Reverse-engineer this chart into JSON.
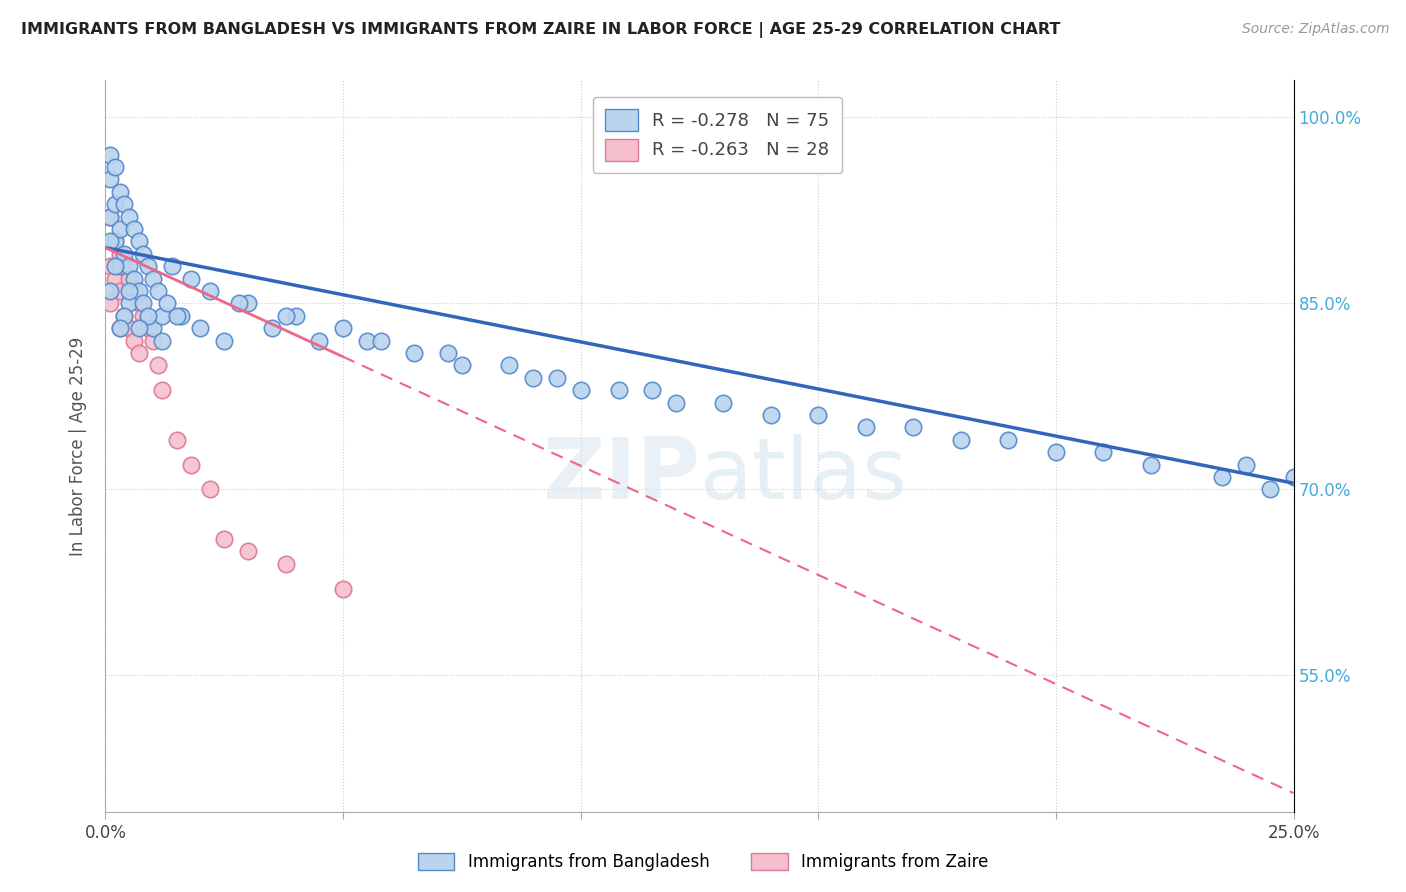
{
  "title": "IMMIGRANTS FROM BANGLADESH VS IMMIGRANTS FROM ZAIRE IN LABOR FORCE | AGE 25-29 CORRELATION CHART",
  "source": "Source: ZipAtlas.com",
  "ylabel": "In Labor Force | Age 25-29",
  "xlim": [
    0.0,
    0.25
  ],
  "ylim": [
    0.44,
    1.03
  ],
  "xticks": [
    0.0,
    0.05,
    0.1,
    0.15,
    0.2,
    0.25
  ],
  "xtick_labels": [
    "0.0%",
    "",
    "",
    "",
    "",
    "25.0%"
  ],
  "ytick_labels_right": [
    "100.0%",
    "85.0%",
    "70.0%",
    "55.0%"
  ],
  "ytick_values_right": [
    1.0,
    0.85,
    0.7,
    0.55
  ],
  "bangladesh_color": "#b8d4ee",
  "bangladesh_edge": "#5588cc",
  "zaire_color": "#f5c0cc",
  "zaire_edge": "#dd7799",
  "trend_bangladesh_color": "#3366bb",
  "trend_zaire_color": "#ee6688",
  "watermark": "ZIPatlas",
  "legend_r_bangladesh": "R = -0.278",
  "legend_n_bangladesh": "N = 75",
  "legend_r_zaire": "R = -0.263",
  "legend_n_zaire": "N = 28",
  "bang_x": [
    0.001,
    0.001,
    0.001,
    0.002,
    0.002,
    0.002,
    0.003,
    0.003,
    0.003,
    0.004,
    0.004,
    0.005,
    0.005,
    0.005,
    0.006,
    0.006,
    0.007,
    0.007,
    0.008,
    0.008,
    0.009,
    0.01,
    0.01,
    0.011,
    0.012,
    0.013,
    0.014,
    0.016,
    0.018,
    0.02,
    0.022,
    0.025,
    0.03,
    0.035,
    0.04,
    0.045,
    0.05,
    0.055,
    0.065,
    0.075,
    0.09,
    0.1,
    0.115,
    0.13,
    0.15,
    0.17,
    0.19,
    0.21,
    0.24,
    0.25,
    0.058,
    0.072,
    0.085,
    0.095,
    0.108,
    0.12,
    0.14,
    0.16,
    0.18,
    0.2,
    0.22,
    0.235,
    0.245,
    0.038,
    0.028,
    0.015,
    0.012,
    0.009,
    0.007,
    0.005,
    0.004,
    0.003,
    0.002,
    0.001,
    0.001
  ],
  "bang_y": [
    0.97,
    0.95,
    0.92,
    0.96,
    0.93,
    0.9,
    0.94,
    0.91,
    0.88,
    0.93,
    0.89,
    0.92,
    0.88,
    0.85,
    0.91,
    0.87,
    0.9,
    0.86,
    0.89,
    0.85,
    0.88,
    0.87,
    0.83,
    0.86,
    0.84,
    0.85,
    0.88,
    0.84,
    0.87,
    0.83,
    0.86,
    0.82,
    0.85,
    0.83,
    0.84,
    0.82,
    0.83,
    0.82,
    0.81,
    0.8,
    0.79,
    0.78,
    0.78,
    0.77,
    0.76,
    0.75,
    0.74,
    0.73,
    0.72,
    0.71,
    0.82,
    0.81,
    0.8,
    0.79,
    0.78,
    0.77,
    0.76,
    0.75,
    0.74,
    0.73,
    0.72,
    0.71,
    0.7,
    0.84,
    0.85,
    0.84,
    0.82,
    0.84,
    0.83,
    0.86,
    0.84,
    0.83,
    0.88,
    0.9,
    0.86
  ],
  "zaire_x": [
    0.001,
    0.001,
    0.001,
    0.002,
    0.002,
    0.003,
    0.003,
    0.003,
    0.004,
    0.004,
    0.005,
    0.005,
    0.006,
    0.006,
    0.007,
    0.007,
    0.008,
    0.009,
    0.01,
    0.011,
    0.012,
    0.015,
    0.018,
    0.022,
    0.025,
    0.03,
    0.038,
    0.05
  ],
  "zaire_y": [
    0.92,
    0.88,
    0.85,
    0.9,
    0.87,
    0.89,
    0.86,
    0.83,
    0.88,
    0.84,
    0.87,
    0.83,
    0.86,
    0.82,
    0.85,
    0.81,
    0.84,
    0.83,
    0.82,
    0.8,
    0.78,
    0.74,
    0.72,
    0.7,
    0.66,
    0.65,
    0.64,
    0.62
  ],
  "trend_bang_x0": 0.0,
  "trend_bang_y0": 0.895,
  "trend_bang_x1": 0.25,
  "trend_bang_y1": 0.705,
  "trend_zaire_x0": 0.0,
  "trend_zaire_y0": 0.895,
  "trend_zaire_x1": 0.25,
  "trend_zaire_y1": 0.455
}
